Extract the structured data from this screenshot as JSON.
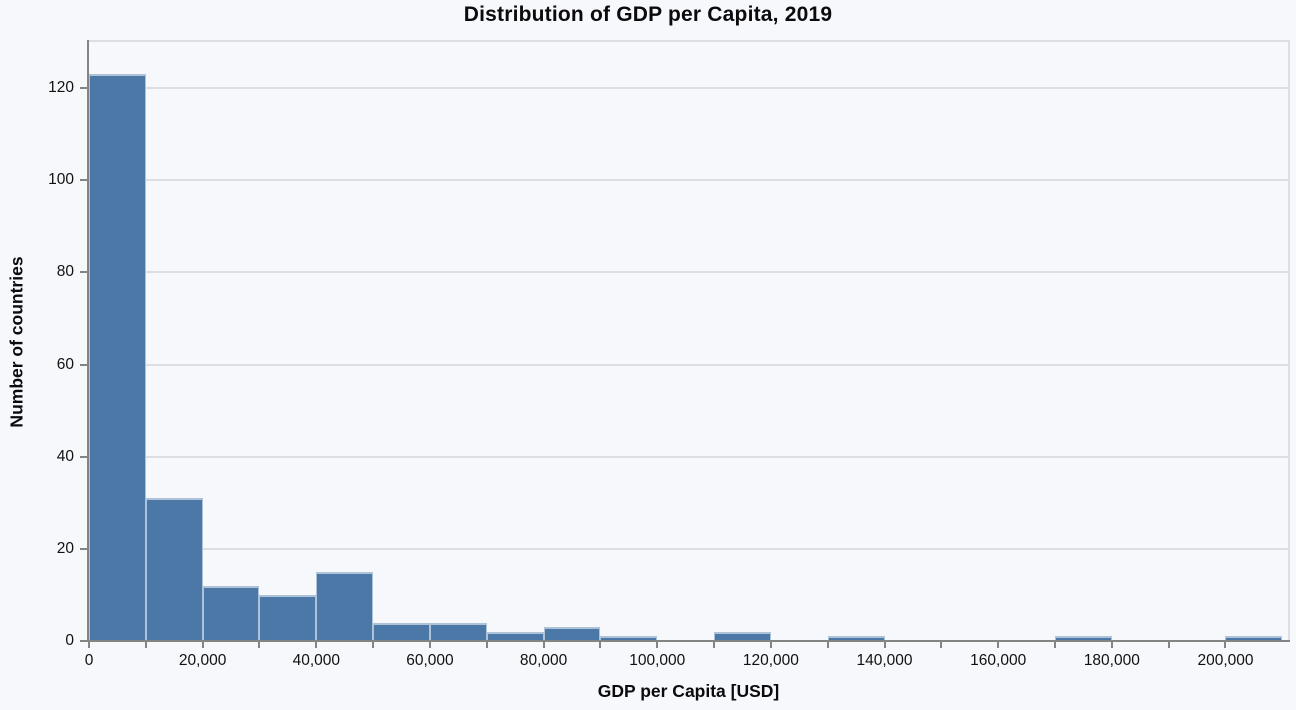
{
  "title": "Distribution of GDP per Capita, 2019",
  "chart_data": {
    "type": "bar",
    "subtype": "histogram",
    "title": "Distribution of GDP per Capita, 2019",
    "xlabel": "GDP per Capita [USD]",
    "ylabel": "Number of countries",
    "bin_width": 10000,
    "bins": [
      {
        "x0": 0,
        "x1": 10000,
        "count": 123
      },
      {
        "x0": 10000,
        "x1": 20000,
        "count": 31
      },
      {
        "x0": 20000,
        "x1": 30000,
        "count": 12
      },
      {
        "x0": 30000,
        "x1": 40000,
        "count": 10
      },
      {
        "x0": 40000,
        "x1": 50000,
        "count": 15
      },
      {
        "x0": 50000,
        "x1": 60000,
        "count": 4
      },
      {
        "x0": 60000,
        "x1": 70000,
        "count": 4
      },
      {
        "x0": 70000,
        "x1": 80000,
        "count": 2
      },
      {
        "x0": 80000,
        "x1": 90000,
        "count": 3
      },
      {
        "x0": 90000,
        "x1": 100000,
        "count": 1
      },
      {
        "x0": 100000,
        "x1": 110000,
        "count": 0
      },
      {
        "x0": 110000,
        "x1": 120000,
        "count": 2
      },
      {
        "x0": 120000,
        "x1": 130000,
        "count": 0
      },
      {
        "x0": 130000,
        "x1": 140000,
        "count": 1
      },
      {
        "x0": 140000,
        "x1": 150000,
        "count": 0
      },
      {
        "x0": 150000,
        "x1": 160000,
        "count": 0
      },
      {
        "x0": 160000,
        "x1": 170000,
        "count": 0
      },
      {
        "x0": 170000,
        "x1": 180000,
        "count": 1
      },
      {
        "x0": 180000,
        "x1": 190000,
        "count": 0
      },
      {
        "x0": 190000,
        "x1": 200000,
        "count": 0
      },
      {
        "x0": 200000,
        "x1": 210000,
        "count": 1
      }
    ],
    "xlim": [
      0,
      211000
    ],
    "ylim": [
      0,
      130
    ],
    "x_tick_step": 10000,
    "x_labeled_ticks": [
      0,
      20000,
      40000,
      60000,
      80000,
      100000,
      120000,
      140000,
      160000,
      180000,
      200000
    ],
    "y_ticks": [
      0,
      20,
      40,
      60,
      80,
      100,
      120
    ],
    "grid": true,
    "legend": "none",
    "colors": {
      "background": "#f7f8fc",
      "bar_fill": "#4c78a8",
      "bar_stroke": "rgba(255,255,255,0.55)",
      "gridline": "#dcdee2",
      "light_border": "#dcdee2",
      "axis": "#848484",
      "text": "#111111"
    }
  }
}
